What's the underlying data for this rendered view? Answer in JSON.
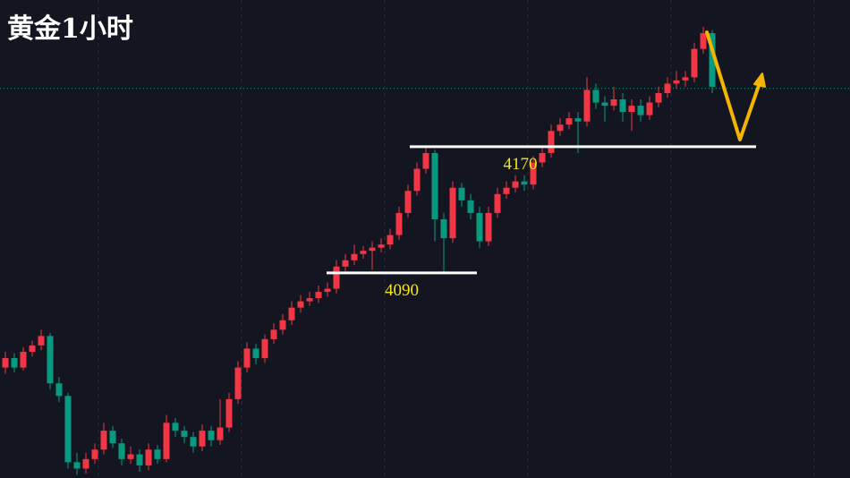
{
  "chart_data": {
    "type": "candlestick",
    "title": "黄金1小时",
    "open": [
      4030,
      4036,
      4030,
      4040,
      4044,
      4050,
      4020,
      4012,
      3970,
      3966,
      3972,
      3978,
      3990,
      3982,
      3972,
      3975,
      3968,
      3978,
      3972,
      3995,
      3990,
      3986,
      3980,
      3990,
      3984,
      3992,
      4010,
      4030,
      4042,
      4036,
      4048,
      4054,
      4060,
      4068,
      4072,
      4074,
      4078,
      4080,
      4094,
      4098,
      4102,
      4104,
      4106,
      4108,
      4114,
      4128,
      4142,
      4156,
      4166,
      4124,
      4112,
      4144,
      4136,
      4128,
      4110,
      4128,
      4140,
      4144,
      4148,
      4146,
      4160,
      4166,
      4180,
      4184,
      4188,
      4186,
      4206,
      4198,
      4196,
      4200,
      4192,
      4196,
      4190,
      4198,
      4204,
      4210,
      4212,
      4214,
      4232,
      4242
    ],
    "high": [
      4040,
      4039,
      4043,
      4047,
      4054,
      4052,
      4024,
      4014,
      3976,
      3976,
      3982,
      3995,
      3993,
      3985,
      3980,
      3978,
      3982,
      3981,
      4000,
      3998,
      3993,
      3989,
      3994,
      3993,
      4010,
      4014,
      4034,
      4046,
      4045,
      4051,
      4058,
      4064,
      4072,
      4076,
      4078,
      4082,
      4084,
      4098,
      4102,
      4108,
      4107,
      4110,
      4112,
      4118,
      4132,
      4146,
      4160,
      4170,
      4168,
      4128,
      4148,
      4147,
      4140,
      4132,
      4132,
      4144,
      4148,
      4152,
      4152,
      4164,
      4170,
      4184,
      4188,
      4192,
      4192,
      4214,
      4210,
      4202,
      4208,
      4204,
      4200,
      4200,
      4202,
      4208,
      4214,
      4218,
      4218,
      4236,
      4246,
      4244
    ],
    "low": [
      4026,
      4027,
      4028,
      4037,
      4041,
      4016,
      4008,
      3966,
      3962,
      3963,
      3969,
      3975,
      3979,
      3968,
      3969,
      3964,
      3965,
      3969,
      3970,
      3986,
      3982,
      3976,
      3977,
      3980,
      3981,
      3989,
      4007,
      4027,
      4032,
      4033,
      4045,
      4051,
      4057,
      4065,
      4069,
      4071,
      4075,
      4077,
      4091,
      4095,
      4099,
      4092,
      4103,
      4105,
      4111,
      4125,
      4139,
      4153,
      4110,
      4090,
      4109,
      4132,
      4124,
      4106,
      4107,
      4125,
      4137,
      4141,
      4142,
      4143,
      4157,
      4163,
      4177,
      4181,
      4166,
      4183,
      4194,
      4186,
      4193,
      4186,
      4180,
      4186,
      4187,
      4195,
      4201,
      4207,
      4208,
      4211,
      4229,
      4204
    ],
    "close": [
      4036,
      4030,
      4040,
      4044,
      4050,
      4020,
      4012,
      3970,
      3966,
      3972,
      3978,
      3990,
      3982,
      3972,
      3975,
      3968,
      3978,
      3972,
      3995,
      3990,
      3986,
      3980,
      3990,
      3984,
      3992,
      4010,
      4030,
      4042,
      4036,
      4048,
      4054,
      4060,
      4068,
      4072,
      4074,
      4078,
      4080,
      4094,
      4098,
      4102,
      4104,
      4106,
      4108,
      4114,
      4128,
      4142,
      4156,
      4166,
      4124,
      4112,
      4144,
      4136,
      4128,
      4110,
      4128,
      4140,
      4144,
      4148,
      4146,
      4160,
      4166,
      4180,
      4184,
      4188,
      4186,
      4206,
      4198,
      4196,
      4200,
      4192,
      4196,
      4190,
      4198,
      4204,
      4210,
      4212,
      4214,
      4232,
      4242,
      4208
    ],
    "up_color": "#f23645",
    "down_color": "#089981",
    "ylim": [
      3960,
      4263
    ],
    "grid": true,
    "current_price": 4207,
    "levels": [
      4090,
      4170
    ]
  }
}
